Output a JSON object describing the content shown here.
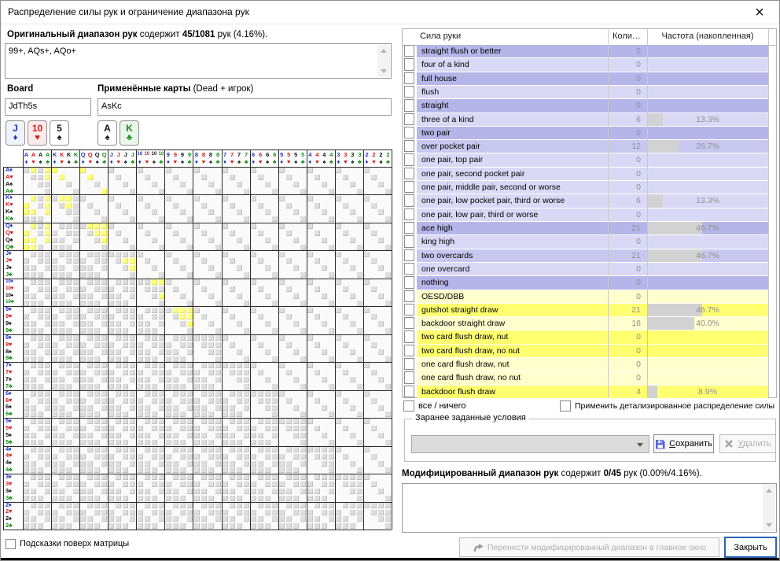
{
  "window": {
    "title": "Распределение силы рук и ограничение диапазона рук",
    "close_glyph": "×"
  },
  "original_range": {
    "label_bold": "Оригинальный диапазон рук",
    "label_mid": " содержит ",
    "count": "45/1081",
    "label_tail": " рук (4.16%).",
    "value": "99+, AQs+, AQo+"
  },
  "board": {
    "label": "Board",
    "value": "JdTh5s"
  },
  "applied": {
    "label_bold": "Применённые карты",
    "label_normal": " (Dead + игрок)",
    "value": "AsKc"
  },
  "board_cards": [
    {
      "rank": "J",
      "suit": "d"
    },
    {
      "rank": "10",
      "suit": "h"
    },
    {
      "rank": "5",
      "suit": "s"
    }
  ],
  "applied_cards": [
    {
      "rank": "A",
      "suit": "s"
    },
    {
      "rank": "K",
      "suit": "c"
    }
  ],
  "matrix": {
    "ranks": [
      "A",
      "K",
      "Q",
      "J",
      "10",
      "9",
      "8",
      "7",
      "6",
      "5",
      "4",
      "3",
      "2"
    ],
    "suits": [
      "d",
      "h",
      "s",
      "c"
    ],
    "suit_symbols": {
      "d": "♦",
      "h": "♥",
      "s": "♠",
      "c": "♣"
    },
    "suit_colors": {
      "d": "#2733cc",
      "h": "#d42020",
      "s": "#141414",
      "c": "#169016"
    },
    "card_tints": {
      "d": "#eef3fc",
      "h": "#fdeaea",
      "s": "#ffffff",
      "c": "#eaf6ea"
    },
    "selected_pairs": [
      "A",
      "K",
      "Q",
      "J",
      "10",
      "9"
    ],
    "selected_suited": [
      "AK",
      "AQ"
    ],
    "selected_offsuit": [
      "AK",
      "AQ"
    ],
    "dead_cards": [
      "Jd",
      "10h",
      "5s",
      "As",
      "Kc"
    ]
  },
  "strength_table": {
    "headers": [
      "Сила руки",
      "Коли…",
      "Частота (накопленная)"
    ],
    "rows": [
      {
        "label": "straight flush or better",
        "count": "0",
        "pct": 0,
        "pct_label": "",
        "tone": "pd"
      },
      {
        "label": "four of a kind",
        "count": "0",
        "pct": 0,
        "pct_label": "",
        "tone": "pl"
      },
      {
        "label": "full house",
        "count": "0",
        "pct": 0,
        "pct_label": "",
        "tone": "pd"
      },
      {
        "label": "flush",
        "count": "0",
        "pct": 0,
        "pct_label": "",
        "tone": "pl"
      },
      {
        "label": "straight",
        "count": "0",
        "pct": 0,
        "pct_label": "",
        "tone": "pd"
      },
      {
        "label": "three of a kind",
        "count": "6",
        "pct": 13.3,
        "pct_label": "13.3%",
        "tone": "pl"
      },
      {
        "label": "two pair",
        "count": "0",
        "pct": 0,
        "pct_label": "",
        "tone": "pd"
      },
      {
        "label": "over pocket pair",
        "count": "12",
        "pct": 26.7,
        "pct_label": "26.7%",
        "tone": "pm"
      },
      {
        "label": "one pair, top pair",
        "count": "0",
        "pct": 0,
        "pct_label": "",
        "tone": "pl"
      },
      {
        "label": "one pair, second pocket pair",
        "count": "0",
        "pct": 0,
        "pct_label": "",
        "tone": "pl"
      },
      {
        "label": "one pair, middle pair, second or worse",
        "count": "0",
        "pct": 0,
        "pct_label": "",
        "tone": "pl"
      },
      {
        "label": "one pair, low pocket pair, third or worse",
        "count": "6",
        "pct": 13.3,
        "pct_label": "13.3%",
        "tone": "pl"
      },
      {
        "label": "one pair, low pair, third or worse",
        "count": "0",
        "pct": 0,
        "pct_label": "",
        "tone": "pl"
      },
      {
        "label": "ace high",
        "count": "21",
        "pct": 46.7,
        "pct_label": "46.7%",
        "tone": "pd"
      },
      {
        "label": "king high",
        "count": "0",
        "pct": 0,
        "pct_label": "",
        "tone": "pl"
      },
      {
        "label": "two overcards",
        "count": "21",
        "pct": 46.7,
        "pct_label": "46.7%",
        "tone": "pm"
      },
      {
        "label": "one overcard",
        "count": "0",
        "pct": 0,
        "pct_label": "",
        "tone": "pl"
      },
      {
        "label": "nothing",
        "count": "0",
        "pct": 0,
        "pct_label": "",
        "tone": "pd"
      },
      {
        "label": "OESD/DBB",
        "count": "0",
        "pct": 0,
        "pct_label": "",
        "tone": "yp"
      },
      {
        "label": "gutshot straight draw",
        "count": "21",
        "pct": 46.7,
        "pct_label": "46.7%",
        "tone": "yb"
      },
      {
        "label": "backdoor straight draw",
        "count": "18",
        "pct": 40.0,
        "pct_label": "40.0%",
        "tone": "yp"
      },
      {
        "label": "two card flush draw, nut",
        "count": "0",
        "pct": 0,
        "pct_label": "",
        "tone": "yb"
      },
      {
        "label": "two card flush draw, no nut",
        "count": "0",
        "pct": 0,
        "pct_label": "",
        "tone": "yb"
      },
      {
        "label": "one card flush draw, nut",
        "count": "0",
        "pct": 0,
        "pct_label": "",
        "tone": "yp"
      },
      {
        "label": "one card flush draw, no nut",
        "count": "0",
        "pct": 0,
        "pct_label": "",
        "tone": "yp"
      },
      {
        "label": "backdoor flush draw",
        "count": "4",
        "pct": 8.9,
        "pct_label": "8.9%",
        "tone": "yb"
      }
    ]
  },
  "footer": {
    "all_nothing": "все / ничего",
    "apply_detailed": "Применить детализированное распределение силы",
    "hints_label": "Подсказки поверх матрицы"
  },
  "presets": {
    "group_label": "Заранее заданные условия",
    "save_accel": "С",
    "save_rest": "охранить",
    "delete_accel": "У",
    "delete_rest": "далить"
  },
  "modified_range": {
    "label_bold": "Модифицированный диапазон рук",
    "label_mid": " содержит ",
    "count": "0/45",
    "label_tail": " рук (0.00%/4.16%).",
    "value": ""
  },
  "buttons": {
    "transfer_label": "Перенести модифицированный диапазон в главное окно",
    "close_label": "Закрыть"
  },
  "palette": {
    "tones": {
      "pd": "#b5b5e9",
      "pm": "#c7c7f0",
      "pl": "#d9d9f6",
      "yb": "#ffff70",
      "yp": "#ffffcd"
    },
    "bar": "#d2d2d2",
    "value_text": "#8f8f8f"
  }
}
